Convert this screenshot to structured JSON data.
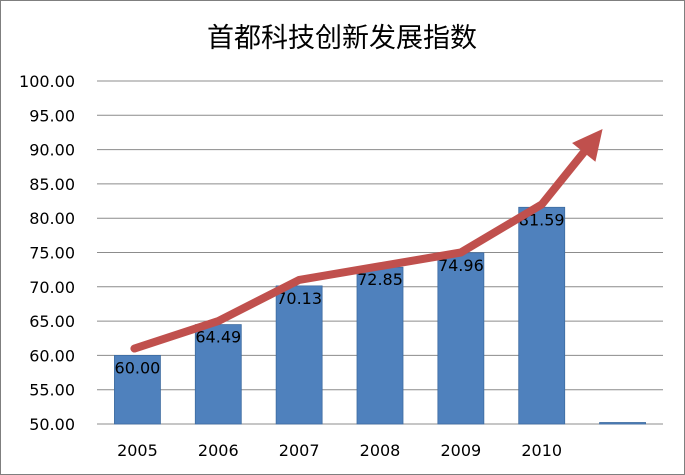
{
  "chart_data": {
    "type": "bar",
    "title": "首都科技创新发展指数",
    "categories": [
      "2005",
      "2006",
      "2007",
      "2008",
      "2009",
      "2010",
      ""
    ],
    "values": [
      60.0,
      64.49,
      70.13,
      72.85,
      74.96,
      81.59,
      50.0
    ],
    "data_labels": [
      "60.00",
      "64.49",
      "70.13",
      "72.85",
      "74.96",
      "81.59",
      ""
    ],
    "ylim": [
      50,
      100
    ],
    "ytick_labels": [
      "50.00",
      "55.00",
      "60.00",
      "65.00",
      "70.00",
      "75.00",
      "80.00",
      "85.00",
      "90.00",
      "95.00",
      "100.00"
    ],
    "grid": true,
    "legend": "none",
    "trend_arrow": {
      "x": [
        "2005",
        "2006",
        "2007",
        "2008",
        "2009",
        "2010",
        ""
      ],
      "y": [
        61.0,
        65.0,
        71.0,
        73.0,
        75.0,
        82.0,
        93.0
      ]
    }
  },
  "colors": {
    "bar": "#4F81BD",
    "bar_edge": "#3D6BA0",
    "arrow": "#C0504D",
    "grid": "#8C8C8C",
    "frame": "#7F7F7F"
  }
}
